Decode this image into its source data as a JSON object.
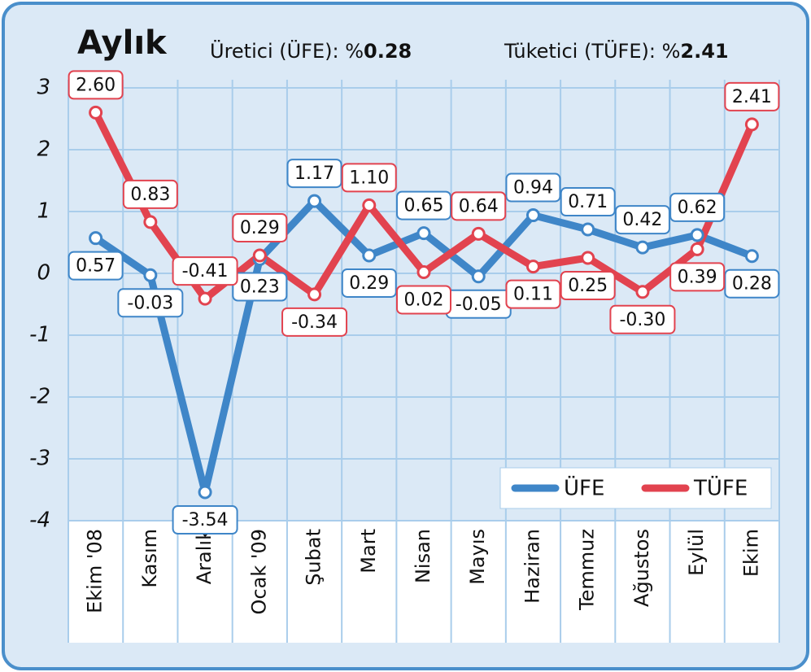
{
  "chart_data": {
    "type": "line",
    "title": "Aylık",
    "subtitles": [
      "Üretici (ÜFE): %",
      "0.28",
      "Tüketici (TÜFE): %",
      "2.41"
    ],
    "categories": [
      "Ekim '08",
      "Kasım",
      "Aralık",
      "Ocak '09",
      "Şubat",
      "Mart",
      "Nisan",
      "Mayıs",
      "Haziran",
      "Temmuz",
      "Ağustos",
      "Eylül",
      "Ekim"
    ],
    "series": [
      {
        "name": "ÜFE",
        "color": "#3f86c8",
        "values": [
          0.57,
          -0.03,
          -3.54,
          0.23,
          1.17,
          0.29,
          0.65,
          -0.05,
          0.94,
          0.71,
          0.42,
          0.62,
          0.28
        ],
        "value_labels": [
          "0.57",
          "-0.03",
          "-3.54",
          "0.23",
          "1.17",
          "0.29",
          "0.65",
          "-0.05",
          "0.94",
          "0.71",
          "0.42",
          "0.62",
          "0.28"
        ]
      },
      {
        "name": "TÜFE",
        "color": "#e2434f",
        "values": [
          2.6,
          0.83,
          -0.41,
          0.29,
          -0.34,
          1.1,
          0.02,
          0.64,
          0.11,
          0.25,
          -0.3,
          0.39,
          2.41
        ],
        "value_labels": [
          "2.60",
          "0.83",
          "-0.41",
          "0.29",
          "-0.34",
          "1.10",
          "0.02",
          "0.64",
          "0.11",
          "0.25",
          "-0.30",
          "0.39",
          "2.41"
        ]
      }
    ],
    "ylim": [
      -4,
      3
    ],
    "yticks": [
      -4,
      -3,
      -2,
      -1,
      0,
      1,
      2,
      3
    ],
    "grid": true,
    "legend": "lower right"
  }
}
